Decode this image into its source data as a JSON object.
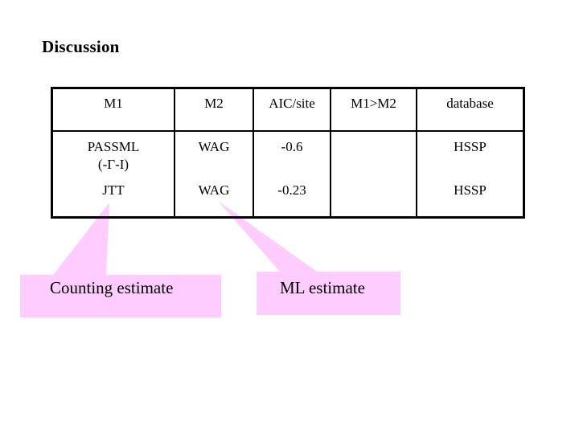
{
  "slide": {
    "title": "Discussion"
  },
  "table": {
    "headers": [
      "M1",
      "M2",
      "AIC/site",
      "M1>M2",
      "database"
    ],
    "rows": [
      {
        "m1_line1": "PASSML",
        "m1_line2": "(-Γ-I)",
        "m2": "WAG",
        "aic": "-0.6",
        "m1_gt_m2": "",
        "database": "HSSP"
      },
      {
        "m1_line1": "JTT",
        "m1_line2": "",
        "m2": "WAG",
        "aic": "-0.23",
        "m1_gt_m2": "",
        "database": "HSSP"
      }
    ]
  },
  "callouts": {
    "counting": "Counting estimate",
    "ml": "ML estimate",
    "fill_color": "#ffccff"
  }
}
